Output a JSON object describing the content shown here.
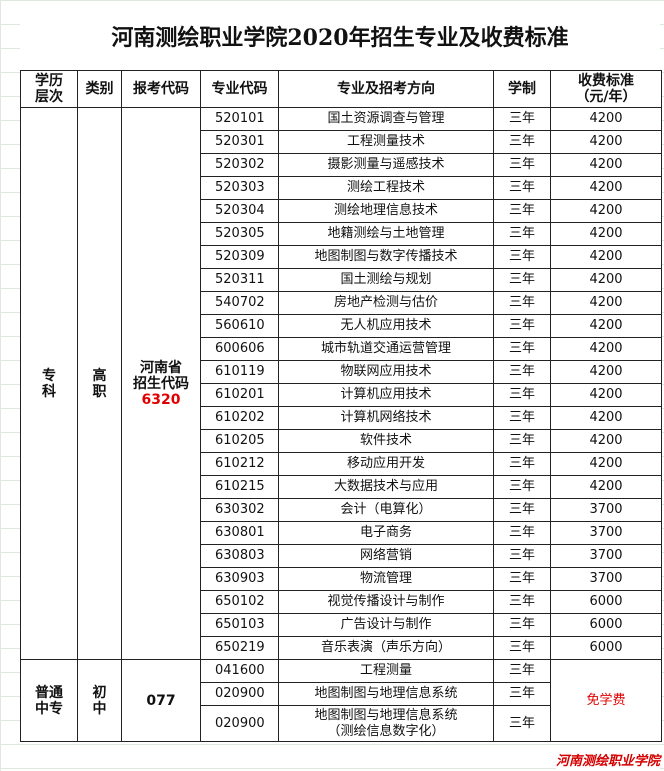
{
  "title": "河南测绘职业学院2020年招生专业及收费标准",
  "header": [
    [
      "学历",
      "层次"
    ],
    [
      "类别"
    ],
    [
      "报考代码"
    ],
    [
      "专业代码"
    ],
    [
      "专业及招考方向"
    ],
    [
      "学制"
    ],
    [
      "收费标准",
      "（元/年）"
    ]
  ],
  "groups": [
    {
      "level": [
        "专",
        "科"
      ],
      "category": [
        "高",
        "职"
      ],
      "apply_code": [
        "河南省",
        "招生代码"
      ],
      "apply_number": "6320",
      "fee": null,
      "rows": [
        {
          "code": "520101",
          "major": [
            "国土资源调查与管理"
          ],
          "years": "三年",
          "fee": "4200"
        },
        {
          "code": "520301",
          "major": [
            "工程测量技术"
          ],
          "years": "三年",
          "fee": "4200"
        },
        {
          "code": "520302",
          "major": [
            "摄影测量与遥感技术"
          ],
          "years": "三年",
          "fee": "4200"
        },
        {
          "code": "520303",
          "major": [
            "测绘工程技术"
          ],
          "years": "三年",
          "fee": "4200"
        },
        {
          "code": "520304",
          "major": [
            "测绘地理信息技术"
          ],
          "years": "三年",
          "fee": "4200"
        },
        {
          "code": "520305",
          "major": [
            "地籍测绘与土地管理"
          ],
          "years": "三年",
          "fee": "4200"
        },
        {
          "code": "520309",
          "major": [
            "地图制图与数字传播技术"
          ],
          "years": "三年",
          "fee": "4200"
        },
        {
          "code": "520311",
          "major": [
            "国土测绘与规划"
          ],
          "years": "三年",
          "fee": "4200"
        },
        {
          "code": "540702",
          "major": [
            "房地产检测与估价"
          ],
          "years": "三年",
          "fee": "4200"
        },
        {
          "code": "560610",
          "major": [
            "无人机应用技术"
          ],
          "years": "三年",
          "fee": "4200"
        },
        {
          "code": "600606",
          "major": [
            "城市轨道交通运营管理"
          ],
          "years": "三年",
          "fee": "4200"
        },
        {
          "code": "610119",
          "major": [
            "物联网应用技术"
          ],
          "years": "三年",
          "fee": "4200"
        },
        {
          "code": "610201",
          "major": [
            "计算机应用技术"
          ],
          "years": "三年",
          "fee": "4200"
        },
        {
          "code": "610202",
          "major": [
            "计算机网络技术"
          ],
          "years": "三年",
          "fee": "4200"
        },
        {
          "code": "610205",
          "major": [
            "软件技术"
          ],
          "years": "三年",
          "fee": "4200"
        },
        {
          "code": "610212",
          "major": [
            "移动应用开发"
          ],
          "years": "三年",
          "fee": "4200"
        },
        {
          "code": "610215",
          "major": [
            "大数据技术与应用"
          ],
          "years": "三年",
          "fee": "4200"
        },
        {
          "code": "630302",
          "major": [
            "会计（电算化）"
          ],
          "years": "三年",
          "fee": "3700"
        },
        {
          "code": "630801",
          "major": [
            "电子商务"
          ],
          "years": "三年",
          "fee": "3700"
        },
        {
          "code": "630803",
          "major": [
            "网络营销"
          ],
          "years": "三年",
          "fee": "3700"
        },
        {
          "code": "630903",
          "major": [
            "物流管理"
          ],
          "years": "三年",
          "fee": "3700"
        },
        {
          "code": "650102",
          "major": [
            "视觉传播设计与制作"
          ],
          "years": "三年",
          "fee": "6000"
        },
        {
          "code": "650103",
          "major": [
            "广告设计与制作"
          ],
          "years": "三年",
          "fee": "6000"
        },
        {
          "code": "650219",
          "major": [
            "音乐表演（声乐方向）"
          ],
          "years": "三年",
          "fee": "6000"
        }
      ]
    },
    {
      "level": [
        "普通",
        "中专"
      ],
      "category": [
        "初",
        "中"
      ],
      "apply_code": [
        "077"
      ],
      "apply_number": null,
      "fee": "免学费",
      "rows": [
        {
          "code": "041600",
          "major": [
            "工程测量"
          ],
          "years": "三年",
          "fee": null
        },
        {
          "code": "020900",
          "major": [
            "地图制图与地理信息系统"
          ],
          "years": "三年",
          "fee": null
        },
        {
          "code": "020900",
          "major": [
            "地图制图与地理信息系统",
            "（测绘信息数字化）"
          ],
          "years": "三年",
          "fee": null
        }
      ]
    }
  ],
  "watermark": "河南测绘职业学院"
}
